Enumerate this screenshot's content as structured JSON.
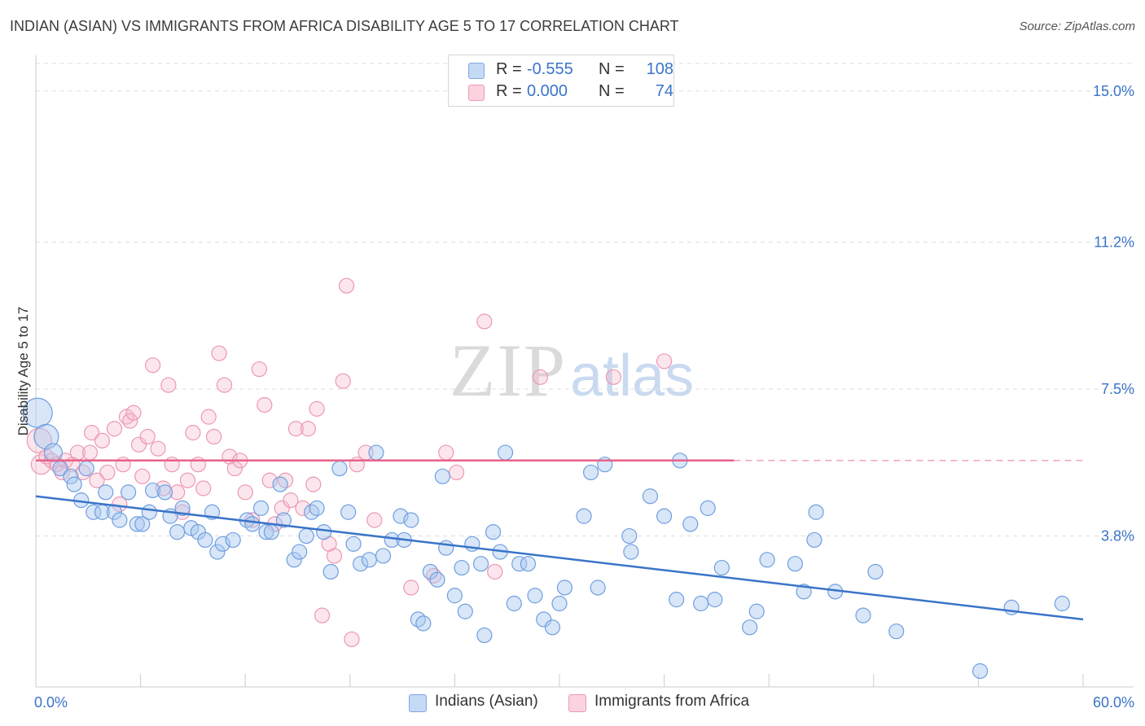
{
  "header": {
    "title": "INDIAN (ASIAN) VS IMMIGRANTS FROM AFRICA DISABILITY AGE 5 TO 17 CORRELATION CHART",
    "source": "Source: ZipAtlas.com"
  },
  "watermark": {
    "zip": "ZIP",
    "atlas": "atlas"
  },
  "legend": {
    "rows": [
      {
        "r_label": "R =",
        "r_value": "-0.555",
        "n_label": "N =",
        "n_value": "108",
        "color": "#a9c7ef"
      },
      {
        "r_label": "R =",
        "r_value": "0.000",
        "n_label": "N =",
        "n_value": "74",
        "color": "#f6b8cb"
      }
    ]
  },
  "bottom_legend": [
    {
      "label": "Indians (Asian)",
      "color": "#a9c7ef"
    },
    {
      "label": "Immigrants from Africa",
      "color": "#f6b8cb"
    }
  ],
  "chart_data": {
    "type": "scatter",
    "title": "INDIAN (ASIAN) VS IMMIGRANTS FROM AFRICA DISABILITY AGE 5 TO 17 CORRELATION CHART",
    "xlabel": "",
    "ylabel": "Disability Age 5 to 17",
    "xlim": [
      0,
      60
    ],
    "ylim": [
      0,
      15.9
    ],
    "x_tick_labels": [
      "0.0%",
      "60.0%"
    ],
    "y_ticks": [
      3.8,
      7.5,
      11.2,
      15.0
    ],
    "y_tick_labels": [
      "3.8%",
      "7.5%",
      "11.2%",
      "15.0%"
    ],
    "grid": "horizontal dashed",
    "legend_position": "top-center",
    "colors": {
      "blue": "#3a74c8",
      "blue_fill": "#a9c7ef",
      "pink": "#e8628a",
      "pink_fill": "#f6b8cb"
    },
    "series": [
      {
        "name": "Indians (Asian)",
        "color": "#3a74c8",
        "r": -0.555,
        "n": 108,
        "trend": {
          "x": [
            0,
            60
          ],
          "y": [
            4.8,
            1.7
          ]
        },
        "points": [
          [
            0.1,
            6.9
          ],
          [
            0.6,
            6.3
          ],
          [
            1.0,
            5.9
          ],
          [
            1.4,
            5.5
          ],
          [
            2.0,
            5.3
          ],
          [
            2.2,
            5.1
          ],
          [
            2.9,
            5.5
          ],
          [
            2.6,
            4.7
          ],
          [
            3.3,
            4.4
          ],
          [
            3.8,
            4.4
          ],
          [
            4.0,
            4.9
          ],
          [
            4.5,
            4.4
          ],
          [
            4.8,
            4.2
          ],
          [
            5.3,
            4.9
          ],
          [
            5.8,
            4.1
          ],
          [
            6.1,
            4.1
          ],
          [
            6.5,
            4.4
          ],
          [
            6.7,
            4.95
          ],
          [
            7.4,
            4.9
          ],
          [
            7.7,
            4.3
          ],
          [
            8.1,
            3.9
          ],
          [
            8.4,
            4.5
          ],
          [
            8.9,
            4.0
          ],
          [
            9.3,
            3.9
          ],
          [
            9.7,
            3.7
          ],
          [
            10.1,
            4.4
          ],
          [
            10.4,
            3.4
          ],
          [
            10.7,
            3.6
          ],
          [
            11.3,
            3.7
          ],
          [
            12.1,
            4.2
          ],
          [
            12.4,
            4.1
          ],
          [
            12.9,
            4.5
          ],
          [
            13.2,
            3.9
          ],
          [
            13.5,
            3.9
          ],
          [
            14.0,
            5.1
          ],
          [
            14.2,
            4.2
          ],
          [
            14.8,
            3.2
          ],
          [
            15.1,
            3.4
          ],
          [
            15.5,
            3.8
          ],
          [
            15.8,
            4.4
          ],
          [
            16.1,
            4.5
          ],
          [
            16.5,
            3.9
          ],
          [
            16.9,
            2.9
          ],
          [
            17.4,
            5.5
          ],
          [
            17.9,
            4.4
          ],
          [
            18.2,
            3.6
          ],
          [
            18.6,
            3.1
          ],
          [
            19.1,
            3.2
          ],
          [
            19.5,
            5.9
          ],
          [
            19.9,
            3.3
          ],
          [
            20.4,
            3.7
          ],
          [
            20.9,
            4.3
          ],
          [
            21.1,
            3.7
          ],
          [
            21.5,
            4.2
          ],
          [
            21.9,
            1.7
          ],
          [
            22.2,
            1.6
          ],
          [
            22.6,
            2.9
          ],
          [
            23.0,
            2.7
          ],
          [
            23.3,
            5.3
          ],
          [
            23.5,
            3.5
          ],
          [
            24.0,
            2.3
          ],
          [
            24.4,
            3.0
          ],
          [
            24.6,
            1.9
          ],
          [
            25.0,
            3.6
          ],
          [
            25.7,
            1.3
          ],
          [
            25.5,
            3.1
          ],
          [
            26.2,
            3.9
          ],
          [
            26.6,
            3.4
          ],
          [
            26.9,
            5.9
          ],
          [
            27.4,
            2.1
          ],
          [
            27.7,
            3.1
          ],
          [
            28.2,
            3.1
          ],
          [
            28.6,
            2.3
          ],
          [
            29.1,
            1.7
          ],
          [
            29.6,
            1.5
          ],
          [
            30.0,
            2.1
          ],
          [
            30.3,
            2.5
          ],
          [
            31.4,
            4.3
          ],
          [
            31.8,
            5.4
          ],
          [
            32.2,
            2.5
          ],
          [
            32.6,
            5.6
          ],
          [
            34.0,
            3.8
          ],
          [
            34.1,
            3.4
          ],
          [
            35.2,
            4.8
          ],
          [
            36.0,
            4.3
          ],
          [
            36.9,
            5.7
          ],
          [
            36.7,
            2.2
          ],
          [
            37.5,
            4.1
          ],
          [
            38.1,
            2.1
          ],
          [
            38.5,
            4.5
          ],
          [
            38.9,
            2.2
          ],
          [
            39.3,
            3.0
          ],
          [
            40.9,
            1.5
          ],
          [
            41.3,
            1.9
          ],
          [
            41.9,
            3.2
          ],
          [
            43.5,
            3.1
          ],
          [
            44.0,
            2.4
          ],
          [
            44.6,
            3.7
          ],
          [
            44.7,
            4.4
          ],
          [
            45.8,
            2.4
          ],
          [
            47.4,
            1.8
          ],
          [
            48.1,
            2.9
          ],
          [
            49.3,
            1.4
          ],
          [
            54.1,
            0.4
          ],
          [
            55.9,
            2.0
          ],
          [
            58.8,
            2.1
          ]
        ]
      },
      {
        "name": "Immigrants from Africa",
        "color": "#e8628a",
        "r": 0.0,
        "n": 74,
        "trend": {
          "x": [
            0,
            60
          ],
          "y": [
            5.7,
            5.7
          ]
        },
        "points": [
          [
            0.2,
            6.2
          ],
          [
            0.3,
            5.6
          ],
          [
            0.6,
            5.8
          ],
          [
            0.9,
            5.7
          ],
          [
            1.2,
            5.6
          ],
          [
            1.5,
            5.4
          ],
          [
            1.7,
            5.7
          ],
          [
            2.1,
            5.6
          ],
          [
            2.4,
            5.9
          ],
          [
            2.7,
            5.4
          ],
          [
            3.1,
            5.9
          ],
          [
            3.2,
            6.4
          ],
          [
            3.5,
            5.2
          ],
          [
            3.8,
            6.2
          ],
          [
            4.1,
            5.4
          ],
          [
            4.5,
            6.5
          ],
          [
            4.8,
            4.6
          ],
          [
            5.0,
            5.6
          ],
          [
            5.2,
            6.8
          ],
          [
            5.4,
            6.7
          ],
          [
            5.6,
            6.9
          ],
          [
            5.9,
            6.1
          ],
          [
            6.1,
            5.3
          ],
          [
            6.4,
            6.3
          ],
          [
            6.7,
            8.1
          ],
          [
            7.0,
            6.0
          ],
          [
            7.3,
            5.0
          ],
          [
            7.6,
            7.6
          ],
          [
            7.8,
            5.6
          ],
          [
            8.1,
            4.9
          ],
          [
            8.4,
            4.4
          ],
          [
            8.7,
            5.2
          ],
          [
            9.0,
            6.4
          ],
          [
            9.3,
            5.6
          ],
          [
            9.6,
            5.0
          ],
          [
            9.9,
            6.8
          ],
          [
            10.2,
            6.3
          ],
          [
            10.5,
            8.4
          ],
          [
            10.8,
            7.6
          ],
          [
            11.1,
            5.8
          ],
          [
            11.4,
            5.5
          ],
          [
            11.7,
            5.7
          ],
          [
            12.0,
            4.9
          ],
          [
            12.4,
            4.2
          ],
          [
            12.8,
            8.0
          ],
          [
            13.1,
            7.1
          ],
          [
            13.4,
            5.2
          ],
          [
            13.7,
            4.1
          ],
          [
            14.1,
            4.5
          ],
          [
            14.3,
            5.2
          ],
          [
            14.6,
            4.7
          ],
          [
            14.9,
            6.5
          ],
          [
            15.3,
            4.5
          ],
          [
            15.6,
            6.5
          ],
          [
            15.9,
            5.1
          ],
          [
            16.1,
            7.0
          ],
          [
            16.4,
            1.8
          ],
          [
            16.8,
            3.6
          ],
          [
            17.1,
            3.3
          ],
          [
            17.6,
            7.7
          ],
          [
            17.8,
            10.1
          ],
          [
            18.1,
            1.2
          ],
          [
            18.4,
            5.6
          ],
          [
            18.9,
            5.9
          ],
          [
            19.4,
            4.2
          ],
          [
            21.5,
            2.5
          ],
          [
            22.8,
            2.8
          ],
          [
            23.5,
            5.9
          ],
          [
            24.1,
            5.4
          ],
          [
            25.7,
            9.2
          ],
          [
            26.3,
            2.9
          ],
          [
            28.9,
            7.8
          ],
          [
            33.1,
            7.8
          ],
          [
            36.0,
            8.2
          ]
        ]
      }
    ]
  }
}
